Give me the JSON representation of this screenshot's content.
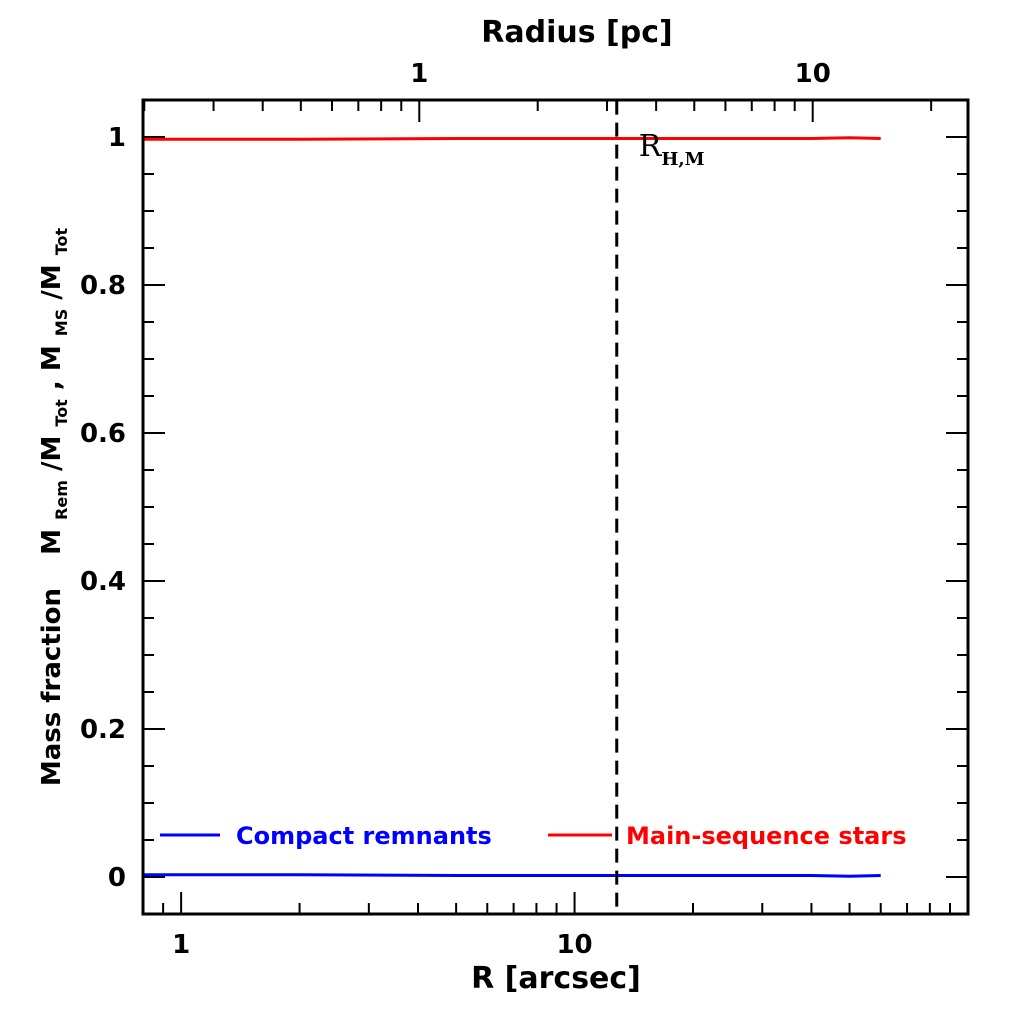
{
  "chart_data": {
    "type": "line",
    "title": "",
    "xlabel": "R [arcsec]",
    "x2label": "Radius [pc]",
    "ylabel": "Mass fraction",
    "xscale": "log",
    "xlim": [
      0.8,
      100
    ],
    "ylim": [
      -0.05,
      1.05
    ],
    "x_ticks": [
      "1",
      "10"
    ],
    "x2_ticks": [
      "1",
      "10"
    ],
    "y_ticks": [
      "0",
      "0.2",
      "0.4",
      "0.6",
      "0.8",
      "1"
    ],
    "series": [
      {
        "name": "Compact remnants",
        "color": "#0000ff",
        "x": [
          0.8,
          2,
          5,
          10,
          20,
          40,
          50,
          60
        ],
        "y": [
          0.003,
          0.003,
          0.002,
          0.002,
          0.002,
          0.002,
          0.001,
          0.002
        ]
      },
      {
        "name": "Main-sequence stars",
        "color": "#ff0000",
        "x": [
          0.8,
          2,
          5,
          10,
          20,
          40,
          50,
          60
        ],
        "y": [
          0.997,
          0.997,
          0.998,
          0.998,
          0.998,
          0.998,
          0.999,
          0.998
        ]
      }
    ],
    "annotations": [
      {
        "label": "R",
        "sub": "H,M",
        "x": 12.8,
        "y_from": -0.04,
        "y_to": 1.05,
        "style": "dashed"
      }
    ],
    "legend": {
      "placement": "bottom",
      "layout": "horizontal"
    },
    "grid": false
  }
}
